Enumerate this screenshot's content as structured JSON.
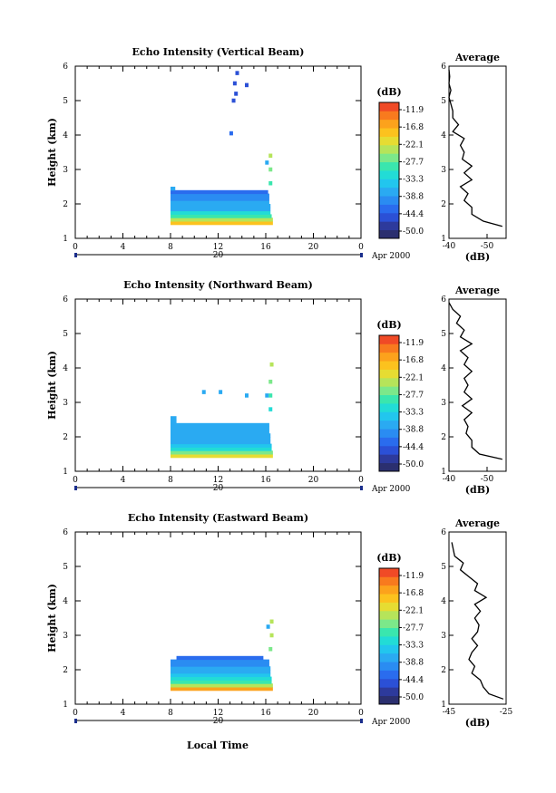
{
  "x_axis_label": "Local Time",
  "date_label": "Apr 2000",
  "day_label": "20",
  "colorbar_unit": "(dB)",
  "colorbar_ticks": [
    "-11.9",
    "-16.8",
    "-22.1",
    "-27.7",
    "-33.3",
    "-38.8",
    "-44.4",
    "-50.0"
  ],
  "colorbar_colors": [
    "#2b2f6f",
    "#2d3a9c",
    "#2b50d6",
    "#2a6cee",
    "#2a8cf2",
    "#2aaaf2",
    "#22c6ee",
    "#22dcd6",
    "#3ae6ae",
    "#7ce88a",
    "#b6e45a",
    "#e6dc32",
    "#fcc21e",
    "#fca21c",
    "#f87a1e",
    "#f04a26"
  ],
  "chart_data": [
    {
      "type": "heatmap",
      "title": "Echo Intensity (Vertical Beam)",
      "ylabel": "Height (km)",
      "xlim": [
        0,
        24
      ],
      "ylim": [
        1,
        6
      ],
      "xticks": [
        "0",
        "4",
        "8",
        "12",
        "16",
        "20",
        "0"
      ],
      "yticks": [
        "1",
        "2",
        "3",
        "4",
        "5",
        "6"
      ],
      "rows": [
        {
          "h": 1.45,
          "x0": 8.0,
          "x1": 16.6,
          "dB": -20
        },
        {
          "h": 1.55,
          "x0": 8.0,
          "x1": 16.6,
          "dB": -25
        },
        {
          "h": 1.65,
          "x0": 8.0,
          "x1": 16.5,
          "dB": -30
        },
        {
          "h": 1.75,
          "x0": 8.0,
          "x1": 16.4,
          "dB": -33
        },
        {
          "h": 1.85,
          "x0": 8.0,
          "x1": 16.4,
          "dB": -36
        },
        {
          "h": 1.95,
          "x0": 8.0,
          "x1": 16.4,
          "dB": -37
        },
        {
          "h": 2.05,
          "x0": 8.0,
          "x1": 16.3,
          "dB": -37
        },
        {
          "h": 2.15,
          "x0": 8.0,
          "x1": 16.3,
          "dB": -39
        },
        {
          "h": 2.25,
          "x0": 8.0,
          "x1": 16.3,
          "dB": -39
        },
        {
          "h": 2.35,
          "x0": 8.0,
          "x1": 16.2,
          "dB": -41
        },
        {
          "h": 2.45,
          "x0": 8.0,
          "x1": 8.4,
          "dB": -36
        }
      ],
      "spots": [
        {
          "t": 16.4,
          "h": 2.6,
          "dB": -30
        },
        {
          "t": 16.4,
          "h": 3.0,
          "dB": -28
        },
        {
          "t": 16.4,
          "h": 3.4,
          "dB": -25
        },
        {
          "t": 16.1,
          "h": 3.2,
          "dB": -37
        },
        {
          "t": 13.6,
          "h": 5.8,
          "dB": -44
        },
        {
          "t": 13.4,
          "h": 5.5,
          "dB": -44
        },
        {
          "t": 14.4,
          "h": 5.45,
          "dB": -44
        },
        {
          "t": 13.5,
          "h": 5.2,
          "dB": -44
        },
        {
          "t": 13.3,
          "h": 5.0,
          "dB": -45
        },
        {
          "t": 13.1,
          "h": 4.05,
          "dB": -42
        }
      ],
      "profile": {
        "title": "Average",
        "xlabel": "(dB)",
        "xlim": [
          -40,
          -55
        ],
        "xticks": [
          "-40",
          "-50"
        ],
        "heights": [
          1.35,
          1.5,
          1.7,
          1.9,
          2.1,
          2.3,
          2.5,
          2.7,
          2.9,
          3.1,
          3.3,
          3.5,
          3.7,
          3.9,
          4.1,
          4.3,
          4.5,
          4.7,
          4.9,
          5.1,
          5.3,
          5.5,
          5.7,
          5.9
        ],
        "values": [
          -54,
          -49,
          -46,
          -46,
          -44,
          -45,
          -43,
          -46,
          -44,
          -46,
          -43.5,
          -44,
          -43,
          -44,
          -41,
          -42.5,
          -41,
          -41,
          -40.5,
          -40,
          -40.5,
          -40,
          -40.2,
          -40
        ]
      }
    },
    {
      "type": "heatmap",
      "title": "Echo Intensity (Northward Beam)",
      "ylabel": "Height (km)",
      "xlim": [
        0,
        24
      ],
      "ylim": [
        1,
        6
      ],
      "xticks": [
        "0",
        "4",
        "8",
        "12",
        "16",
        "20",
        "0"
      ],
      "yticks": [
        "1",
        "2",
        "3",
        "4",
        "5",
        "6"
      ],
      "rows": [
        {
          "h": 1.45,
          "x0": 8.0,
          "x1": 16.6,
          "dB": -22
        },
        {
          "h": 1.55,
          "x0": 8.0,
          "x1": 16.6,
          "dB": -27
        },
        {
          "h": 1.65,
          "x0": 8.0,
          "x1": 16.5,
          "dB": -31
        },
        {
          "h": 1.75,
          "x0": 8.0,
          "x1": 16.5,
          "dB": -34
        },
        {
          "h": 1.85,
          "x0": 8.0,
          "x1": 16.4,
          "dB": -36
        },
        {
          "h": 1.95,
          "x0": 8.0,
          "x1": 16.4,
          "dB": -37
        },
        {
          "h": 2.05,
          "x0": 8.0,
          "x1": 16.4,
          "dB": -37
        },
        {
          "h": 2.15,
          "x0": 8.0,
          "x1": 16.3,
          "dB": -37
        },
        {
          "h": 2.25,
          "x0": 8.0,
          "x1": 16.3,
          "dB": -38
        },
        {
          "h": 2.35,
          "x0": 8.0,
          "x1": 16.3,
          "dB": -38
        },
        {
          "h": 2.45,
          "x0": 8.0,
          "x1": 8.5,
          "dB": -36
        },
        {
          "h": 2.55,
          "x0": 8.0,
          "x1": 8.5,
          "dB": -36
        }
      ],
      "spots": [
        {
          "t": 16.4,
          "h": 2.8,
          "dB": -32
        },
        {
          "t": 16.4,
          "h": 3.2,
          "dB": -30
        },
        {
          "t": 16.4,
          "h": 3.6,
          "dB": -28
        },
        {
          "t": 16.5,
          "h": 4.1,
          "dB": -26
        },
        {
          "t": 16.1,
          "h": 3.2,
          "dB": -37
        },
        {
          "t": 10.8,
          "h": 3.3,
          "dB": -38
        },
        {
          "t": 12.2,
          "h": 3.3,
          "dB": -38
        },
        {
          "t": 14.4,
          "h": 3.2,
          "dB": -37
        }
      ],
      "profile": {
        "title": "Average",
        "xlabel": "(dB)",
        "xlim": [
          -40,
          -55
        ],
        "xticks": [
          "-40",
          "-50"
        ],
        "heights": [
          1.35,
          1.5,
          1.7,
          1.9,
          2.1,
          2.3,
          2.5,
          2.7,
          2.9,
          3.1,
          3.3,
          3.5,
          3.7,
          3.9,
          4.1,
          4.3,
          4.5,
          4.7,
          4.9,
          5.1,
          5.3,
          5.5,
          5.7,
          5.9
        ],
        "values": [
          -54,
          -48,
          -46,
          -46,
          -44.5,
          -45,
          -44,
          -46,
          -43.5,
          -46,
          -44,
          -45,
          -44,
          -46,
          -44,
          -45,
          -43,
          -46,
          -43,
          -44,
          -42,
          -43,
          -41,
          -40
        ]
      }
    },
    {
      "type": "heatmap",
      "title": "Echo Intensity (Eastward Beam)",
      "ylabel": "Height (km)",
      "xlim": [
        0,
        24
      ],
      "ylim": [
        1,
        6
      ],
      "xticks": [
        "0",
        "4",
        "8",
        "12",
        "16",
        "20",
        "0"
      ],
      "yticks": [
        "1",
        "2",
        "3",
        "4",
        "5",
        "6"
      ],
      "rows": [
        {
          "h": 1.45,
          "x0": 8.0,
          "x1": 16.6,
          "dB": -19
        },
        {
          "h": 1.55,
          "x0": 8.0,
          "x1": 16.6,
          "dB": -24
        },
        {
          "h": 1.65,
          "x0": 8.0,
          "x1": 16.5,
          "dB": -29
        },
        {
          "h": 1.75,
          "x0": 8.0,
          "x1": 16.5,
          "dB": -32
        },
        {
          "h": 1.85,
          "x0": 8.0,
          "x1": 16.4,
          "dB": -35
        },
        {
          "h": 1.95,
          "x0": 8.0,
          "x1": 16.4,
          "dB": -37
        },
        {
          "h": 2.05,
          "x0": 8.0,
          "x1": 16.4,
          "dB": -38
        },
        {
          "h": 2.15,
          "x0": 8.0,
          "x1": 16.3,
          "dB": -39
        },
        {
          "h": 2.25,
          "x0": 8.0,
          "x1": 16.3,
          "dB": -40
        },
        {
          "h": 2.35,
          "x0": 8.5,
          "x1": 15.8,
          "dB": -41
        }
      ],
      "spots": [
        {
          "t": 16.4,
          "h": 2.6,
          "dB": -28
        },
        {
          "t": 16.5,
          "h": 3.0,
          "dB": -26
        },
        {
          "t": 16.5,
          "h": 3.4,
          "dB": -24
        },
        {
          "t": 16.2,
          "h": 3.25,
          "dB": -38
        }
      ],
      "profile": {
        "title": "Average",
        "xlabel": "(dB)",
        "xlim": [
          -45,
          -25
        ],
        "xticks": [
          "-45",
          "-25"
        ],
        "heights": [
          1.15,
          1.3,
          1.5,
          1.7,
          1.9,
          2.1,
          2.3,
          2.5,
          2.7,
          2.9,
          3.1,
          3.3,
          3.5,
          3.7,
          3.9,
          4.1,
          4.3,
          4.5,
          4.7,
          4.9,
          5.1,
          5.3,
          5.5,
          5.7
        ],
        "values": [
          -26,
          -31,
          -33,
          -34,
          -37,
          -36,
          -38,
          -37,
          -35,
          -37,
          -35,
          -34.5,
          -36,
          -34,
          -36,
          -32,
          -36,
          -35,
          -38,
          -41,
          -40,
          -43,
          -43.5,
          -44
        ]
      }
    }
  ]
}
